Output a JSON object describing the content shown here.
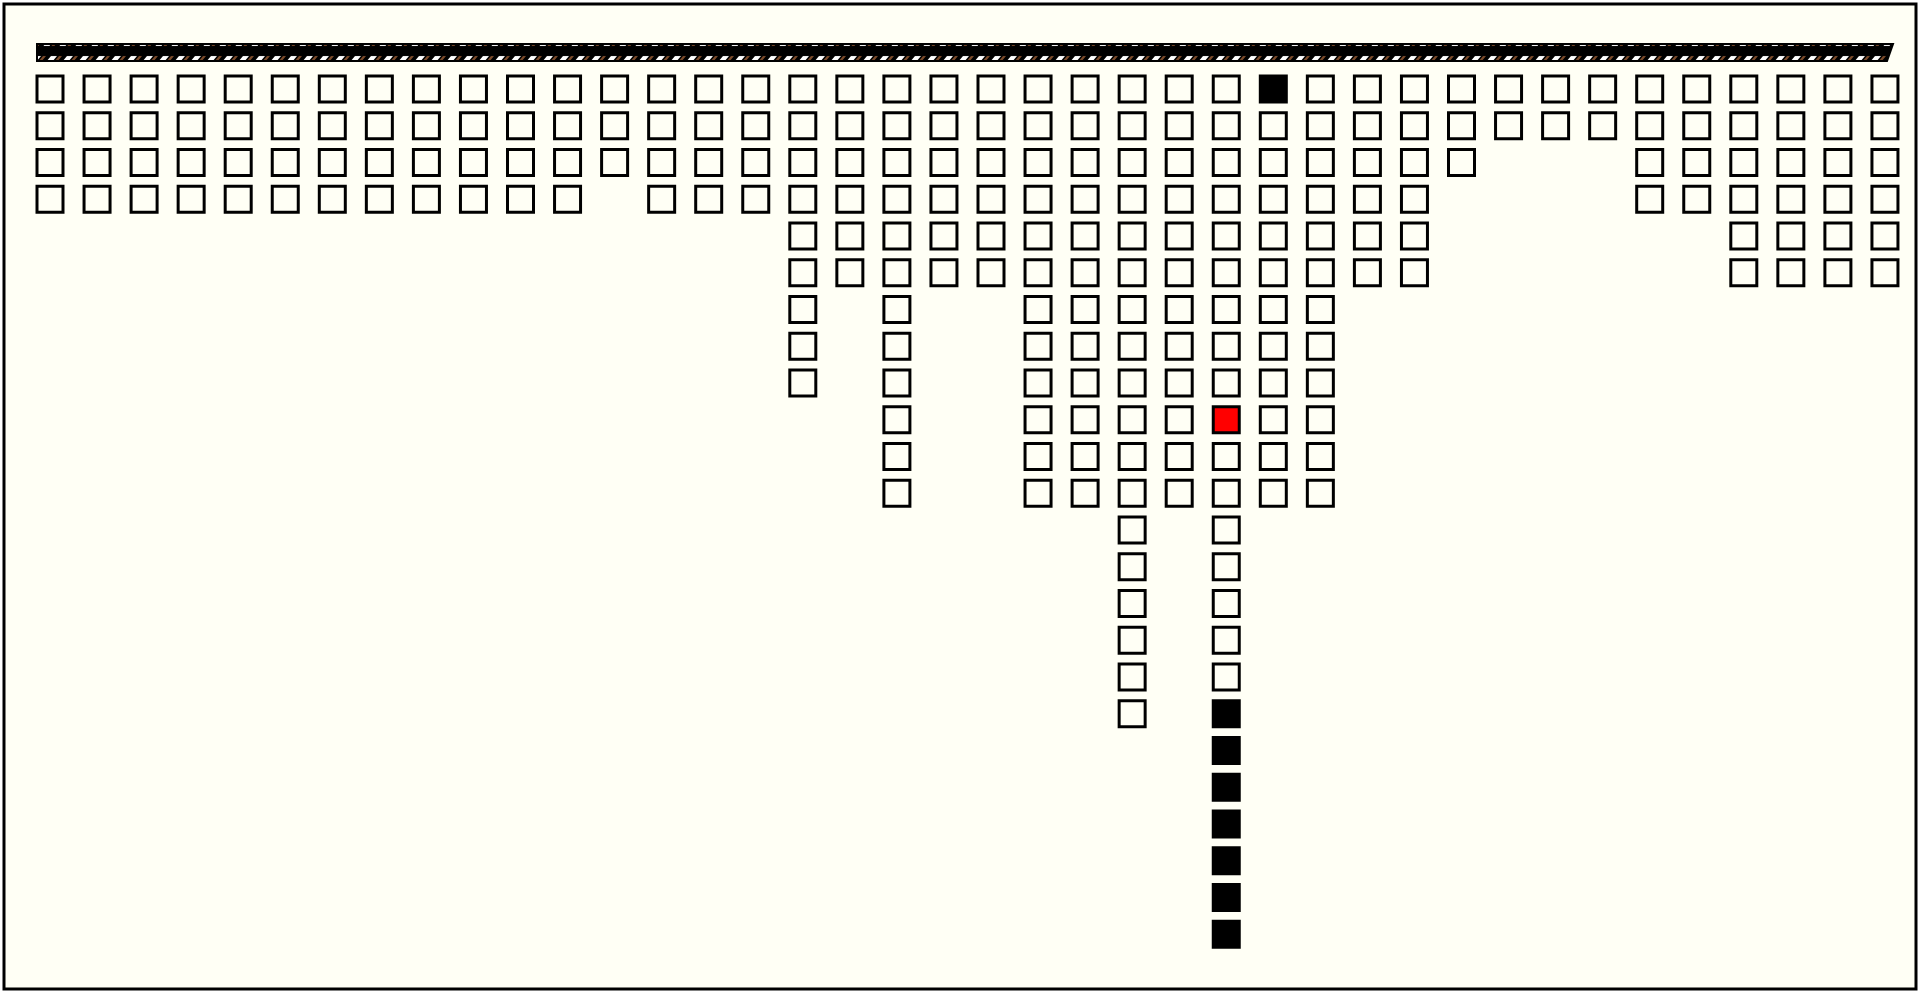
{
  "board": {
    "columns": [
      {
        "length": 4
      },
      {
        "length": 4
      },
      {
        "length": 4
      },
      {
        "length": 4
      },
      {
        "length": 4
      },
      {
        "length": 4
      },
      {
        "length": 4
      },
      {
        "length": 4
      },
      {
        "length": 4
      },
      {
        "length": 4
      },
      {
        "length": 4
      },
      {
        "length": 4
      },
      {
        "length": 3
      },
      {
        "length": 4
      },
      {
        "length": 4
      },
      {
        "length": 4
      },
      {
        "length": 9
      },
      {
        "length": 6
      },
      {
        "length": 12
      },
      {
        "length": 6
      },
      {
        "length": 6
      },
      {
        "length": 12
      },
      {
        "length": 12
      },
      {
        "length": 18
      },
      {
        "length": 12
      },
      {
        "length": 24
      },
      {
        "length": 12
      },
      {
        "length": 12
      },
      {
        "length": 6
      },
      {
        "length": 6
      },
      {
        "length": 3
      },
      {
        "length": 2
      },
      {
        "length": 2
      },
      {
        "length": 2
      },
      {
        "length": 4
      },
      {
        "length": 4
      },
      {
        "length": 6
      },
      {
        "length": 6
      },
      {
        "length": 6
      },
      {
        "length": 6
      }
    ],
    "filled_cells": [
      [
        26,
        0
      ],
      [
        25,
        17
      ],
      [
        25,
        18
      ],
      [
        25,
        19
      ],
      [
        25,
        20
      ],
      [
        25,
        21
      ],
      [
        25,
        22
      ],
      [
        25,
        23
      ]
    ],
    "highlight_cell": [
      25,
      9
    ],
    "highlight_color": "#ff0000",
    "filled_color": "#000000"
  }
}
